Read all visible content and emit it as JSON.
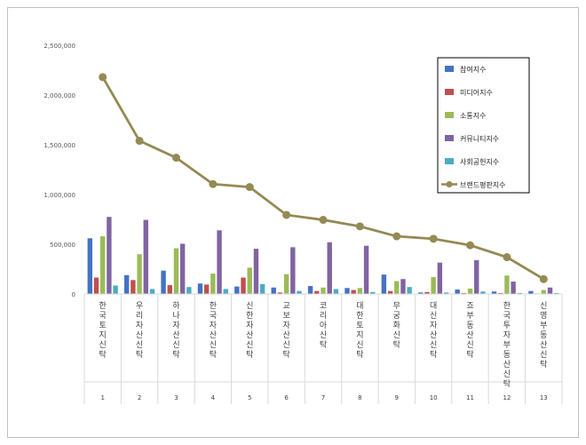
{
  "chart_data": {
    "type": "bar+line",
    "categories": [
      {
        "num": "1",
        "name": "한국토지신탁"
      },
      {
        "num": "2",
        "name": "우리자산신탁"
      },
      {
        "num": "3",
        "name": "하나자산신탁"
      },
      {
        "num": "4",
        "name": "한국자산신탁"
      },
      {
        "num": "5",
        "name": "신한자산신탁"
      },
      {
        "num": "6",
        "name": "교보자산신탁"
      },
      {
        "num": "7",
        "name": "코리아신탁"
      },
      {
        "num": "8",
        "name": "대한토지신탁"
      },
      {
        "num": "9",
        "name": "무궁화신탁"
      },
      {
        "num": "10",
        "name": "대신자산신탁"
      },
      {
        "num": "11",
        "name": "죠부동산신탁"
      },
      {
        "num": "12",
        "name": "한국투자부동산신탁"
      },
      {
        "num": "13",
        "name": "신영부동산신탁"
      }
    ],
    "series": [
      {
        "name": "참여지수",
        "type": "bar",
        "color": "#4472c4",
        "values": [
          560000,
          190000,
          235000,
          105000,
          75000,
          65000,
          80000,
          60000,
          195000,
          15000,
          45000,
          25000,
          30000
        ]
      },
      {
        "name": "미디어지수",
        "type": "bar",
        "color": "#c0504d",
        "values": [
          165000,
          140000,
          90000,
          95000,
          165000,
          15000,
          30000,
          40000,
          30000,
          20000,
          10000,
          10000,
          5000
        ]
      },
      {
        "name": "소통지수",
        "type": "bar",
        "color": "#9bbb59",
        "values": [
          580000,
          400000,
          460000,
          205000,
          265000,
          200000,
          65000,
          60000,
          130000,
          170000,
          55000,
          185000,
          40000
        ]
      },
      {
        "name": "커뮤니티지수",
        "type": "bar",
        "color": "#8064a2",
        "values": [
          775000,
          745000,
          505000,
          640000,
          455000,
          470000,
          520000,
          485000,
          150000,
          315000,
          340000,
          125000,
          65000
        ]
      },
      {
        "name": "사회공헌지수",
        "type": "bar",
        "color": "#4bacc6",
        "values": [
          85000,
          50000,
          70000,
          50000,
          100000,
          30000,
          50000,
          20000,
          70000,
          15000,
          25000,
          10000,
          10000
        ]
      },
      {
        "name": "브랜드평판지수",
        "type": "line",
        "color": "#948a54",
        "values": [
          2180000,
          1540000,
          1370000,
          1105000,
          1075000,
          795000,
          745000,
          680000,
          580000,
          555000,
          490000,
          370000,
          150000
        ]
      }
    ],
    "ylim": [
      0,
      2500000
    ],
    "yticks": [
      "0",
      "500,000",
      "1,000,000",
      "1,500,000",
      "2,000,000",
      "2,500,000"
    ],
    "ytick_values": [
      0,
      500000,
      1000000,
      1500000,
      2000000,
      2500000
    ],
    "grid": false,
    "legend": "top-right"
  }
}
